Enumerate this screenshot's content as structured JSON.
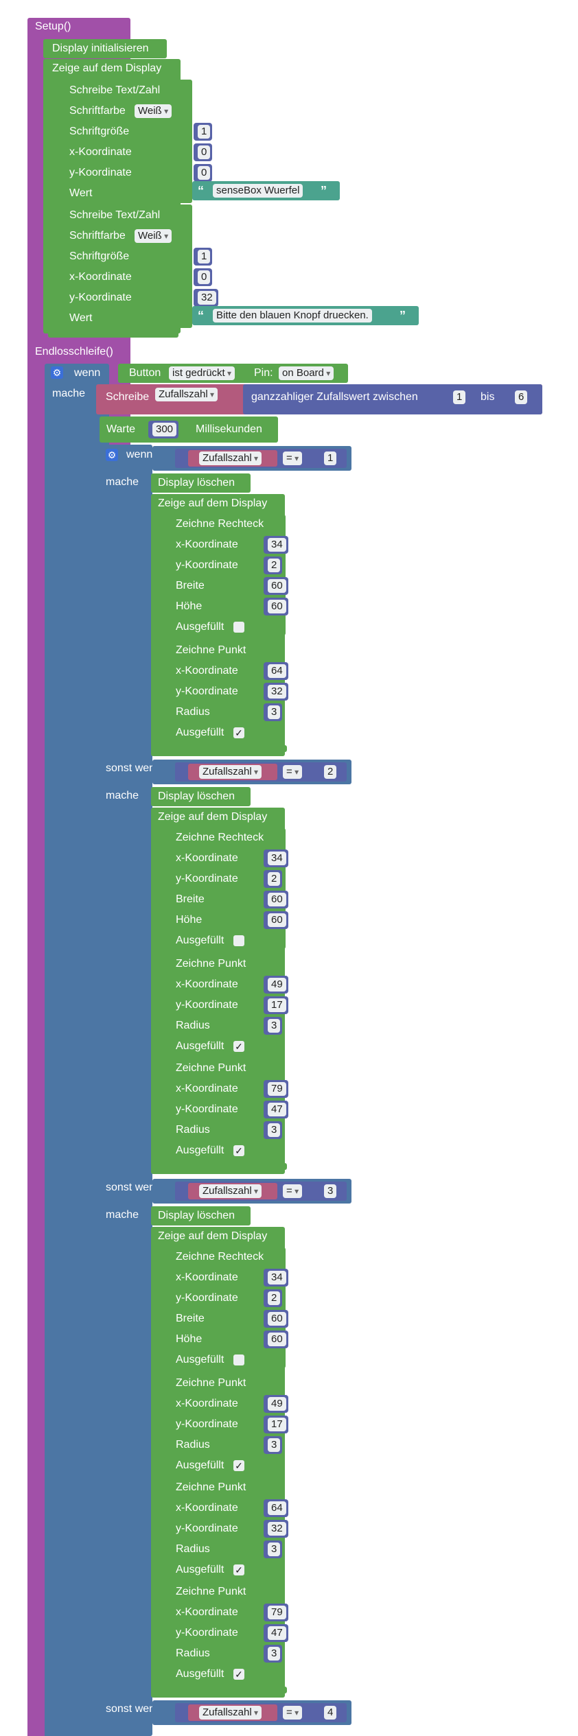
{
  "setup": {
    "title": "Setup()",
    "init": "Display initialisieren",
    "show": "Zeige auf dem Display",
    "text_blocks": [
      {
        "title": "Schreibe Text/Zahl",
        "font_color_label": "Schriftfarbe",
        "font_color": "Weiß",
        "font_size_label": "Schriftgröße",
        "font_size": "1",
        "x_label": "x-Koordinate",
        "x": "0",
        "y_label": "y-Koordinate",
        "y": "0",
        "value_label": "Wert",
        "value": "senseBox Wuerfel"
      },
      {
        "title": "Schreibe Text/Zahl",
        "font_color_label": "Schriftfarbe",
        "font_color": "Weiß",
        "font_size_label": "Schriftgröße",
        "font_size": "1",
        "x_label": "x-Koordinate",
        "x": "0",
        "y_label": "y-Koordinate",
        "y": "32",
        "value_label": "Wert",
        "value": "Bitte den blauen Knopf druecken."
      }
    ]
  },
  "loop": {
    "title": "Endlosschleife()",
    "if_label": "wenn",
    "do_label": "mache",
    "else_if_label": "sonst wenn",
    "button_label": "Button",
    "button_state": "ist gedrückt",
    "pin_label": "Pin:",
    "pin_value": "on Board",
    "write_label": "Schreibe",
    "var_name": "Zufallszahl",
    "random_label": "ganzzahliger Zufallswert zwischen",
    "random_min": "1",
    "random_to": "bis",
    "random_max": "6",
    "wait_label": "Warte",
    "wait_value": "300",
    "wait_unit": "Millisekunden",
    "operator": "=",
    "clear_label": "Display löschen",
    "show_label": "Zeige auf dem Display",
    "rect_title": "Zeichne Rechteck",
    "point_title": "Zeichne Punkt",
    "x_label": "x-Koordinate",
    "y_label": "y-Koordinate",
    "width_label": "Breite",
    "height_label": "Höhe",
    "radius_label": "Radius",
    "filled_label": "Ausgefüllt",
    "check_mark": "✓",
    "cases": [
      {
        "compare": "1",
        "rect": {
          "x": "34",
          "y": "2",
          "w": "60",
          "h": "60"
        },
        "points": [
          {
            "x": "64",
            "y": "32",
            "r": "3"
          }
        ]
      },
      {
        "compare": "2",
        "rect": {
          "x": "34",
          "y": "2",
          "w": "60",
          "h": "60"
        },
        "points": [
          {
            "x": "49",
            "y": "17",
            "r": "3"
          },
          {
            "x": "79",
            "y": "47",
            "r": "3"
          }
        ]
      },
      {
        "compare": "3",
        "rect": {
          "x": "34",
          "y": "2",
          "w": "60",
          "h": "60"
        },
        "points": [
          {
            "x": "49",
            "y": "17",
            "r": "3"
          },
          {
            "x": "64",
            "y": "32",
            "r": "3"
          },
          {
            "x": "79",
            "y": "47",
            "r": "3"
          }
        ]
      },
      {
        "compare": "4"
      }
    ]
  },
  "colors": {
    "purple": "#a150a8",
    "green": "#5aa64d",
    "steel": "#4c76a4",
    "pink": "#b35a7d",
    "teal": "#4ba38e",
    "indigo": "#5863a8",
    "gear": "#3b6fd8"
  }
}
